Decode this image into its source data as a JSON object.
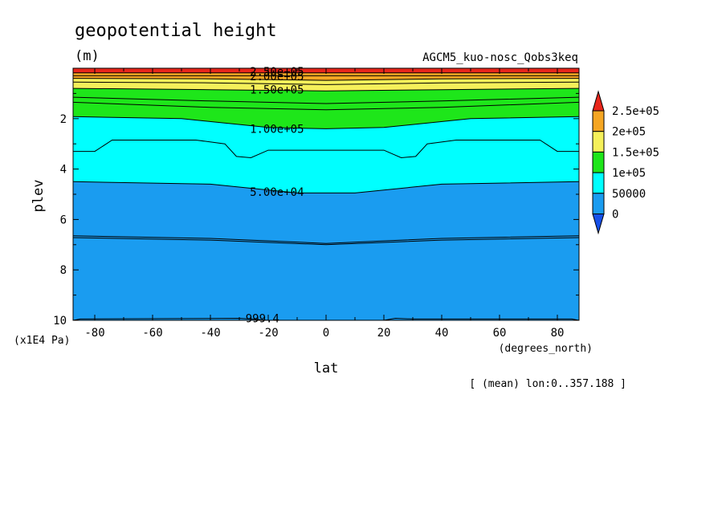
{
  "chart_data": {
    "type": "heatmap",
    "title": "geopotential height",
    "units": "(m)",
    "subtitle": "AGCM5_kuo-nosc_Qobs3keq",
    "xlabel": "lat",
    "x_units": "(degrees_north)",
    "ylabel": "plev",
    "y_units": "(x1E4 Pa)",
    "footer": "[ (mean) lon:0..357.188 ]",
    "xlim": [
      -87.5,
      87.5
    ],
    "ylim": [
      10,
      0
    ],
    "x_ticks": [
      -80,
      -60,
      -40,
      -20,
      0,
      20,
      40,
      60,
      80
    ],
    "x_tick_labels": [
      "-80",
      "-60",
      "-40",
      "-20",
      "0",
      "20",
      "40",
      "60",
      "80"
    ],
    "y_ticks": [
      2,
      4,
      6,
      8,
      10
    ],
    "y_tick_labels": [
      "2",
      "4",
      "6",
      "8",
      "10"
    ],
    "levels": [
      0,
      50000,
      100000,
      150000,
      200000,
      250000
    ],
    "colorbar": {
      "labels": [
        "2.5e+05",
        "2e+05",
        "1.5e+05",
        "1e+05",
        "50000",
        "0"
      ],
      "colors": [
        "#e8261b",
        "#f5a623",
        "#f5f05a",
        "#1ee61a",
        "#00ffff",
        "#1a9cf0",
        "#1650e8"
      ]
    },
    "bands": [
      {
        "level": 250000,
        "color": "#e8261b",
        "boundary": [
          [
            -87.5,
            0.0
          ],
          [
            87.5,
            0.0
          ]
        ]
      },
      {
        "level": 200000,
        "color": "#f5a623",
        "boundary": [
          [
            -87.5,
            0.18
          ],
          [
            87.5,
            0.18
          ]
        ]
      },
      {
        "level": 150000,
        "color": "#f5f05a",
        "boundary": [
          [
            -87.5,
            0.4
          ],
          [
            -40,
            0.42
          ],
          [
            0,
            0.48
          ],
          [
            40,
            0.42
          ],
          [
            87.5,
            0.4
          ]
        ]
      },
      {
        "level": 100000,
        "color": "#1ee61a",
        "boundary": [
          [
            -87.5,
            0.8
          ],
          [
            -40,
            0.85
          ],
          [
            0,
            0.9
          ],
          [
            40,
            0.85
          ],
          [
            87.5,
            0.8
          ]
        ]
      },
      {
        "level": 50000,
        "color": "#00ffff",
        "boundary": [
          [
            -87.5,
            1.92
          ],
          [
            -50,
            2.0
          ],
          [
            -20,
            2.35
          ],
          [
            0,
            2.4
          ],
          [
            20,
            2.35
          ],
          [
            50,
            2.0
          ],
          [
            87.5,
            1.92
          ]
        ]
      },
      {
        "level": 0,
        "color": "#1a9cf0",
        "boundary": [
          [
            -87.5,
            4.5
          ],
          [
            -40,
            4.6
          ],
          [
            -10,
            4.95
          ],
          [
            0,
            4.95
          ],
          [
            10,
            4.95
          ],
          [
            40,
            4.6
          ],
          [
            87.5,
            4.5
          ]
        ]
      }
    ],
    "contours": [
      {
        "points": [
          [
            -87.5,
            0.3
          ],
          [
            87.5,
            0.3
          ]
        ]
      },
      {
        "points": [
          [
            -87.5,
            0.55
          ],
          [
            -40,
            0.58
          ],
          [
            0,
            0.65
          ],
          [
            40,
            0.58
          ],
          [
            87.5,
            0.55
          ]
        ]
      },
      {
        "points": [
          [
            -87.5,
            1.15
          ],
          [
            -40,
            1.3
          ],
          [
            0,
            1.4
          ],
          [
            40,
            1.3
          ],
          [
            87.5,
            1.15
          ]
        ]
      },
      {
        "points": [
          [
            -87.5,
            1.35
          ],
          [
            -40,
            1.55
          ],
          [
            0,
            1.65
          ],
          [
            40,
            1.55
          ],
          [
            87.5,
            1.35
          ]
        ]
      },
      {
        "points": [
          [
            -87.5,
            3.3
          ],
          [
            -80,
            3.3
          ],
          [
            -74,
            2.85
          ],
          [
            -45,
            2.85
          ],
          [
            -35,
            3.0
          ],
          [
            -31,
            3.5
          ],
          [
            -26,
            3.55
          ],
          [
            -20,
            3.25
          ],
          [
            20,
            3.25
          ],
          [
            26,
            3.55
          ],
          [
            31,
            3.5
          ],
          [
            35,
            3.0
          ],
          [
            45,
            2.85
          ],
          [
            74,
            2.85
          ],
          [
            80,
            3.3
          ],
          [
            87.5,
            3.3
          ]
        ]
      },
      {
        "points": [
          [
            -87.5,
            6.65
          ],
          [
            -40,
            6.75
          ],
          [
            0,
            6.95
          ],
          [
            40,
            6.75
          ],
          [
            87.5,
            6.65
          ]
        ]
      },
      {
        "points": [
          [
            -87.5,
            6.72
          ],
          [
            -40,
            6.82
          ],
          [
            0,
            7.0
          ],
          [
            40,
            6.82
          ],
          [
            87.5,
            6.72
          ]
        ]
      },
      {
        "points": [
          [
            -87.5,
            10.0
          ],
          [
            -85,
            9.95
          ],
          [
            -30,
            9.92
          ],
          [
            -20,
            10.0
          ],
          [
            20,
            10.0
          ],
          [
            24,
            9.92
          ],
          [
            30,
            9.95
          ],
          [
            85,
            9.95
          ],
          [
            87.5,
            10.0
          ]
        ]
      }
    ],
    "contour_labels": [
      {
        "text": "2.50e+05",
        "x": -17,
        "y": 0.12
      },
      {
        "text": "2.00e+05",
        "x": -17,
        "y": 0.32
      },
      {
        "text": "1.50e+05",
        "x": -17,
        "y": 0.85
      },
      {
        "text": "1.00e+05",
        "x": -17,
        "y": 2.4
      },
      {
        "text": "5.00e+04",
        "x": -17,
        "y": 4.9
      },
      {
        "text": "999.4",
        "x": -22,
        "y": 9.92
      }
    ]
  }
}
